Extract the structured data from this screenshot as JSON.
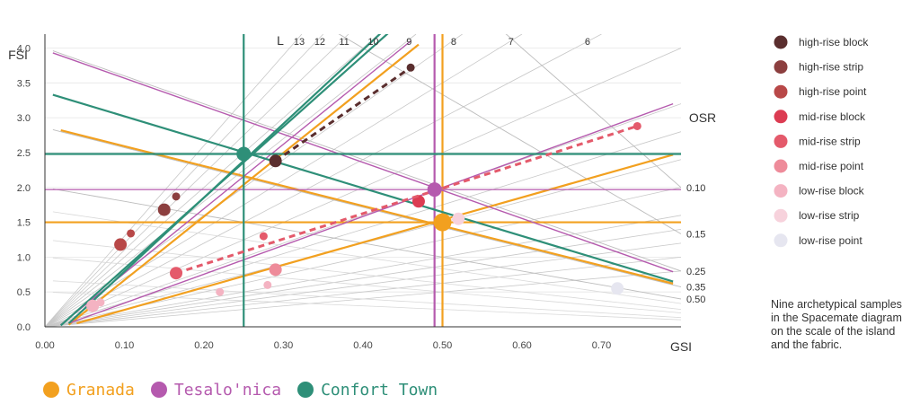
{
  "chart_data": {
    "type": "scatter",
    "title": "",
    "xlabel": "GSI",
    "ylabel": "FSI",
    "xlim": [
      0,
      0.8
    ],
    "ylim": [
      0,
      4.2
    ],
    "x_ticks": [
      "0.00",
      "0.10",
      "0.20",
      "0.30",
      "0.40",
      "0.50",
      "0.60",
      "0.70"
    ],
    "y_ticks": [
      "0.0",
      "0.5",
      "1.0",
      "1.5",
      "2.0",
      "2.5",
      "3.0",
      "3.5",
      "4.0"
    ],
    "l_axis_label": "L",
    "l_lines": [
      {
        "label": "13",
        "value": 13
      },
      {
        "label": "12",
        "value": 12
      },
      {
        "label": "11",
        "value": 11
      },
      {
        "label": "10",
        "value": 10
      },
      {
        "label": "9",
        "value": 9
      },
      {
        "label": "8",
        "value": 8
      },
      {
        "label": "7",
        "value": 7
      },
      {
        "label": "6",
        "value": 6
      }
    ],
    "l_lines_unlabeled": [
      5,
      4,
      3.5,
      3,
      2.5,
      2,
      1.75,
      1.5,
      1.25,
      1
    ],
    "osr_axis_label": "OSR",
    "osr_lines": [
      {
        "label": "0.10",
        "value": 0.1
      },
      {
        "label": "0.15",
        "value": 0.15
      },
      {
        "label": "0.25",
        "value": 0.25
      },
      {
        "label": "0.35",
        "value": 0.35
      },
      {
        "label": "0.50",
        "value": 0.5
      }
    ],
    "series": [
      {
        "name": "high-rise block",
        "color": "#5a2e2e",
        "points": [
          [
            0.29,
            2.38
          ],
          [
            0.46,
            3.72
          ]
        ],
        "dashed": true
      },
      {
        "name": "high-rise strip",
        "color": "#8c3f3f",
        "points": [
          [
            0.15,
            1.68
          ],
          [
            0.165,
            1.87
          ]
        ]
      },
      {
        "name": "high-rise point",
        "color": "#b84848",
        "points": [
          [
            0.095,
            1.18
          ],
          [
            0.108,
            1.34
          ]
        ]
      },
      {
        "name": "mid-rise block",
        "color": "#dc3c52",
        "points": [
          [
            0.47,
            1.8
          ]
        ]
      },
      {
        "name": "mid-rise strip",
        "color": "#e45a6b",
        "points": [
          [
            0.165,
            0.77
          ],
          [
            0.275,
            1.3
          ],
          [
            0.745,
            2.88
          ]
        ],
        "dashed": true
      },
      {
        "name": "mid-rise point",
        "color": "#ee8b9a",
        "points": [
          [
            0.29,
            0.82
          ]
        ]
      },
      {
        "name": "low-rise block",
        "color": "#f4b3c2",
        "points": [
          [
            0.06,
            0.3
          ],
          [
            0.07,
            0.35
          ],
          [
            0.22,
            0.5
          ],
          [
            0.28,
            0.6
          ]
        ]
      },
      {
        "name": "low-rise strip",
        "color": "#f7d2dc",
        "points": [
          [
            0.52,
            1.55
          ]
        ]
      },
      {
        "name": "low-rise point",
        "color": "#e6e6f0",
        "points": [
          [
            0.72,
            0.55
          ]
        ]
      }
    ],
    "overlays": [
      {
        "name": "Granada",
        "color": "#f2a01f",
        "center": [
          0.5,
          1.5
        ],
        "gsi": 0.5,
        "fsi": 1.5,
        "osr_line_a": [
          [
            0.02,
            2.82
          ],
          [
            0.79,
            0.62
          ]
        ],
        "osr_line_b": [
          [
            0.04,
            0.05
          ],
          [
            0.79,
            2.47
          ]
        ],
        "l_line": [
          [
            0.03,
            0.03
          ],
          [
            0.47,
            4.05
          ]
        ]
      },
      {
        "name": "Tesalo'nica",
        "color": "#b55aae",
        "center": [
          0.49,
          1.97
        ],
        "gsi": 0.49,
        "fsi": 1.97,
        "osr_line_a": [
          [
            0.01,
            3.93
          ],
          [
            0.79,
            0.79
          ]
        ],
        "osr_line_b": [
          [
            0.03,
            0.05
          ],
          [
            0.79,
            3.2
          ]
        ],
        "l_line": [
          [
            0.02,
            0.03
          ],
          [
            0.46,
            4.1
          ]
        ]
      },
      {
        "name": "Confort Town",
        "color": "#2e8f78",
        "center": [
          0.25,
          2.48
        ],
        "gsi": 0.25,
        "fsi": 2.48,
        "osr_line_a": [
          [
            0.01,
            3.33
          ],
          [
            0.79,
            0.65
          ]
        ],
        "osr_line_b": [
          [
            0.03,
            0.05
          ],
          [
            0.44,
            4.4
          ]
        ],
        "l_line": [
          [
            0.02,
            0.02
          ],
          [
            0.45,
            4.4
          ]
        ]
      }
    ]
  },
  "legend_title": "",
  "caption": "Nine archetypical samples in the Spacemate diagram on the scale of the island and the fabric.",
  "hand_legend": [
    {
      "label": "Granada",
      "color": "#f2a01f"
    },
    {
      "label": "Tesalo'nica",
      "color": "#b55aae"
    },
    {
      "label": "Confort Town",
      "color": "#2e8f78"
    }
  ]
}
